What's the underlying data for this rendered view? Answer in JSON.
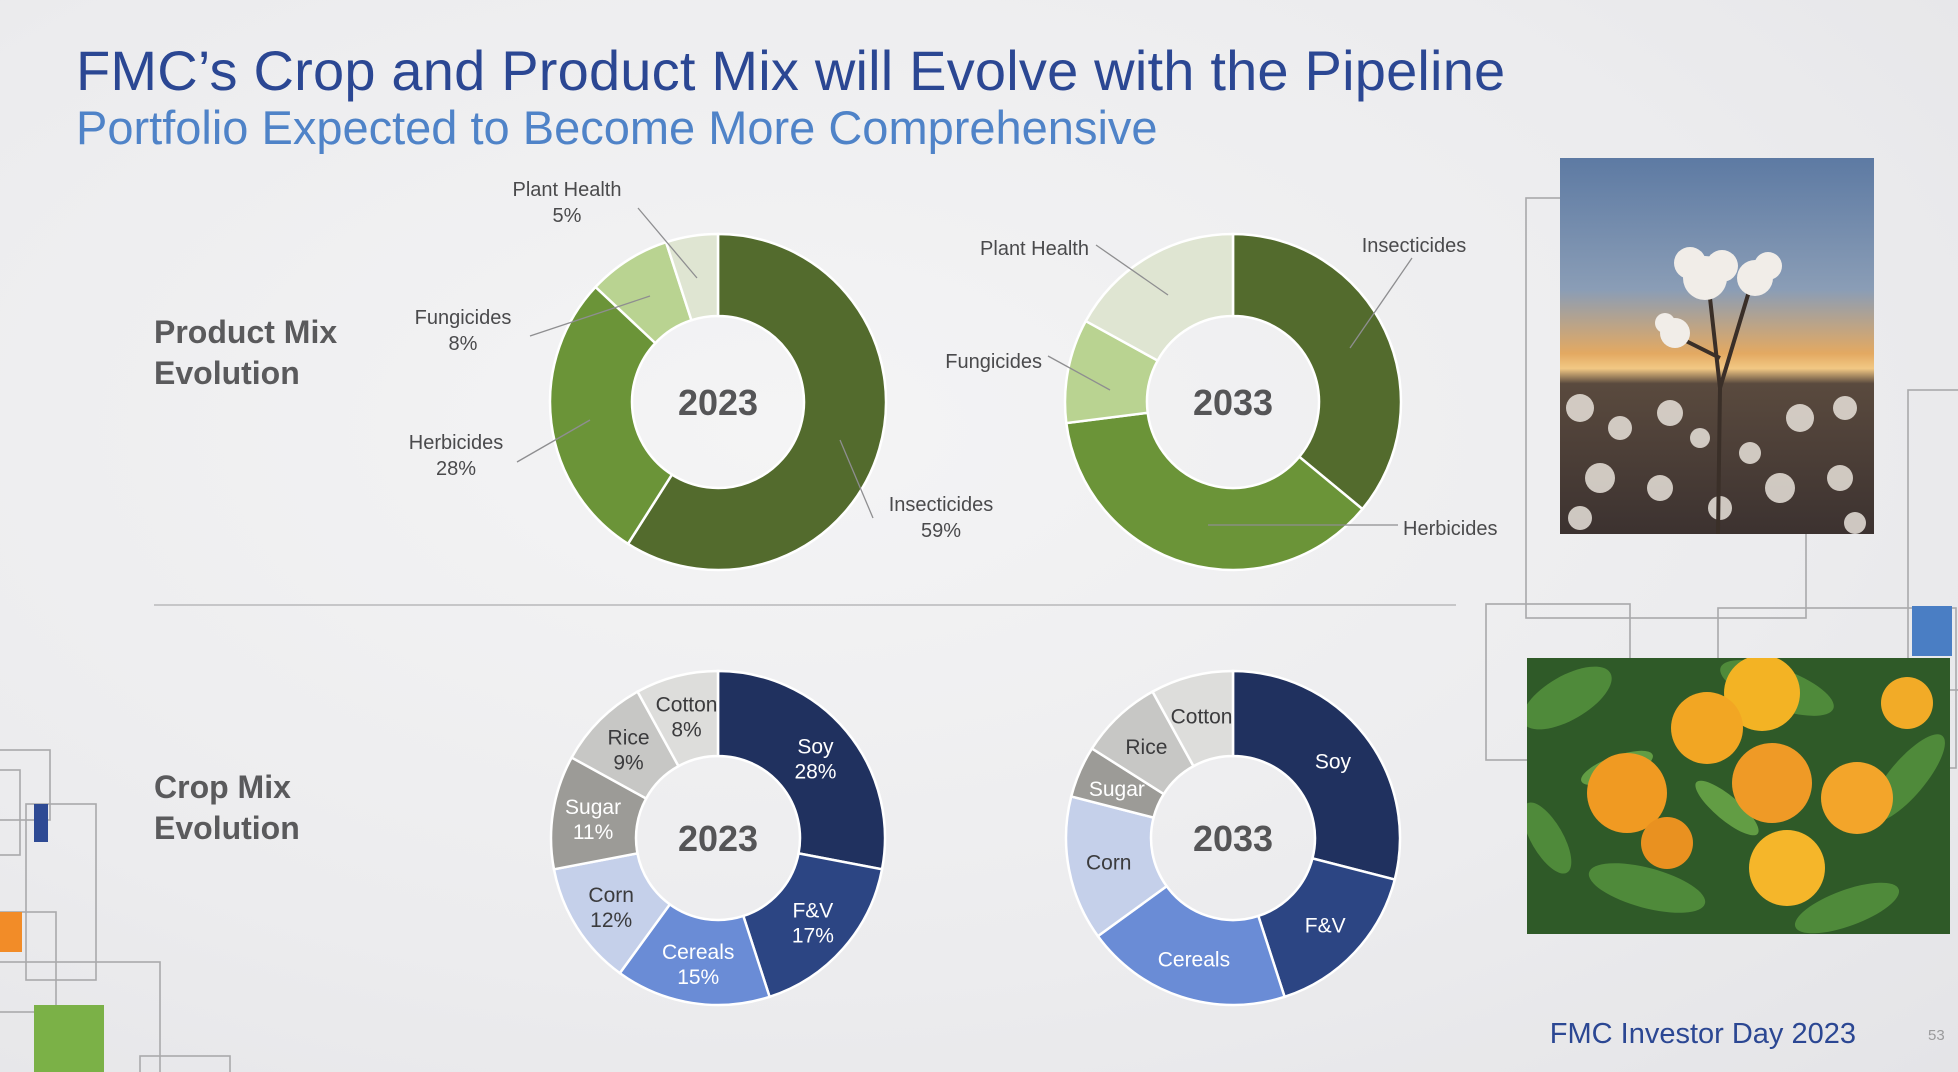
{
  "header": {
    "title": "FMC’s Crop and Product Mix will Evolve with the Pipeline",
    "subtitle": "Portfolio Expected to Become More Comprehensive"
  },
  "sections": {
    "product": "Product Mix\nEvolution",
    "crop": "Crop Mix\nEvolution"
  },
  "footer": {
    "event": "FMC Investor Day 2023",
    "page": "53"
  },
  "colors": {
    "insecticides": "#536b2d",
    "herbicides": "#6b9438",
    "fungicides": "#b9d391",
    "plant_health": "#dfe5d2",
    "soy": "#20315f",
    "fv": "#2c4583",
    "cereals": "#6a8cd6",
    "corn": "#c5d0ea",
    "sugar": "#9c9b97",
    "rice": "#c7c7c5",
    "cotton": "#dddddb"
  },
  "chart_data": [
    {
      "type": "pie",
      "center_label": "2023",
      "labels": [
        "Insecticides",
        "Herbicides",
        "Fungicides",
        "Plant Health"
      ],
      "values": [
        59,
        28,
        8,
        5
      ],
      "value_labels": [
        "59%",
        "28%",
        "8%",
        "5%"
      ],
      "colors": [
        "#536b2d",
        "#6b9438",
        "#b9d391",
        "#dfe5d2"
      ]
    },
    {
      "type": "pie",
      "center_label": "2033",
      "labels": [
        "Insecticides",
        "Herbicides",
        "Fungicides",
        "Plant Health"
      ],
      "values": [
        36,
        37,
        10,
        17
      ],
      "colors": [
        "#536b2d",
        "#6b9438",
        "#b9d391",
        "#dfe5d2"
      ]
    },
    {
      "type": "pie",
      "center_label": "2023",
      "labels": [
        "Soy",
        "F&V",
        "Cereals",
        "Corn",
        "Sugar",
        "Rice",
        "Cotton"
      ],
      "values": [
        28,
        17,
        15,
        12,
        11,
        9,
        8
      ],
      "value_labels": [
        "28%",
        "17%",
        "15%",
        "12%",
        "11%",
        "9%",
        "8%"
      ],
      "colors": [
        "#20315f",
        "#2c4583",
        "#6a8cd6",
        "#c5d0ea",
        "#9c9b97",
        "#c7c7c5",
        "#dddddb"
      ]
    },
    {
      "type": "pie",
      "center_label": "2033",
      "labels": [
        "Soy",
        "F&V",
        "Cereals",
        "Corn",
        "Sugar",
        "Rice",
        "Cotton"
      ],
      "values": [
        29,
        16,
        20,
        14,
        5,
        8,
        8
      ],
      "colors": [
        "#20315f",
        "#2c4583",
        "#6a8cd6",
        "#c5d0ea",
        "#9c9b97",
        "#c7c7c5",
        "#dddddb"
      ]
    }
  ]
}
